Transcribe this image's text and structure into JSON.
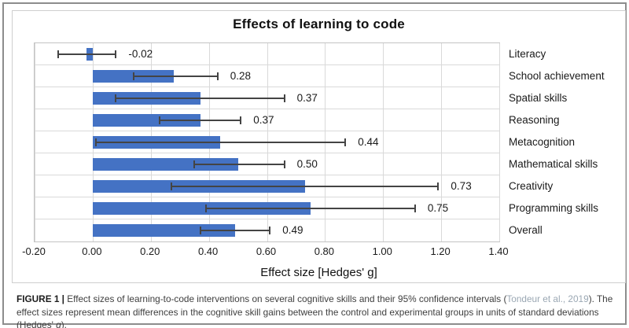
{
  "chart_data": {
    "type": "bar",
    "orientation": "horizontal",
    "title": "Effects of learning to code",
    "xlabel": "Effect size [Hedges' g]",
    "xlim": [
      -0.2,
      1.4
    ],
    "x_ticks": [
      "-0.20",
      "0.00",
      "0.20",
      "0.40",
      "0.60",
      "0.80",
      "1.00",
      "1.20",
      "1.40"
    ],
    "grid": "vertical",
    "legend": "none",
    "error_bars": "95% confidence intervals",
    "categories": [
      "Literacy",
      "School achievement",
      "Spatial skills",
      "Reasoning",
      "Metacognition",
      "Mathematical skills",
      "Creativity",
      "Programming skills",
      "Overall"
    ],
    "values": [
      -0.02,
      0.28,
      0.37,
      0.37,
      0.44,
      0.5,
      0.73,
      0.75,
      0.49
    ],
    "value_labels": [
      "-0.02",
      "0.28",
      "0.37",
      "0.37",
      "0.44",
      "0.50",
      "0.73",
      "0.75",
      "0.49"
    ],
    "ci_low": [
      -0.12,
      0.14,
      0.08,
      0.23,
      0.01,
      0.35,
      0.27,
      0.39,
      0.37
    ],
    "ci_high": [
      0.08,
      0.43,
      0.66,
      0.51,
      0.87,
      0.66,
      1.19,
      1.11,
      0.61
    ],
    "bar_color": "#4472c4",
    "error_color": "#444444",
    "gridline_color": "#d9d9d9"
  },
  "caption": {
    "figure_label": "FIGURE 1 |",
    "before_citation": " Effect sizes of learning-to-code interventions on several cognitive skills and their 95% confidence intervals (",
    "citation": "Tondeur et al., 2019",
    "after_citation": "). The effect sizes represent mean differences in the cognitive skill gains between the control and experimental groups in units of standard deviations (Hedges' ",
    "italic_term": "g",
    "suffix": ")."
  }
}
